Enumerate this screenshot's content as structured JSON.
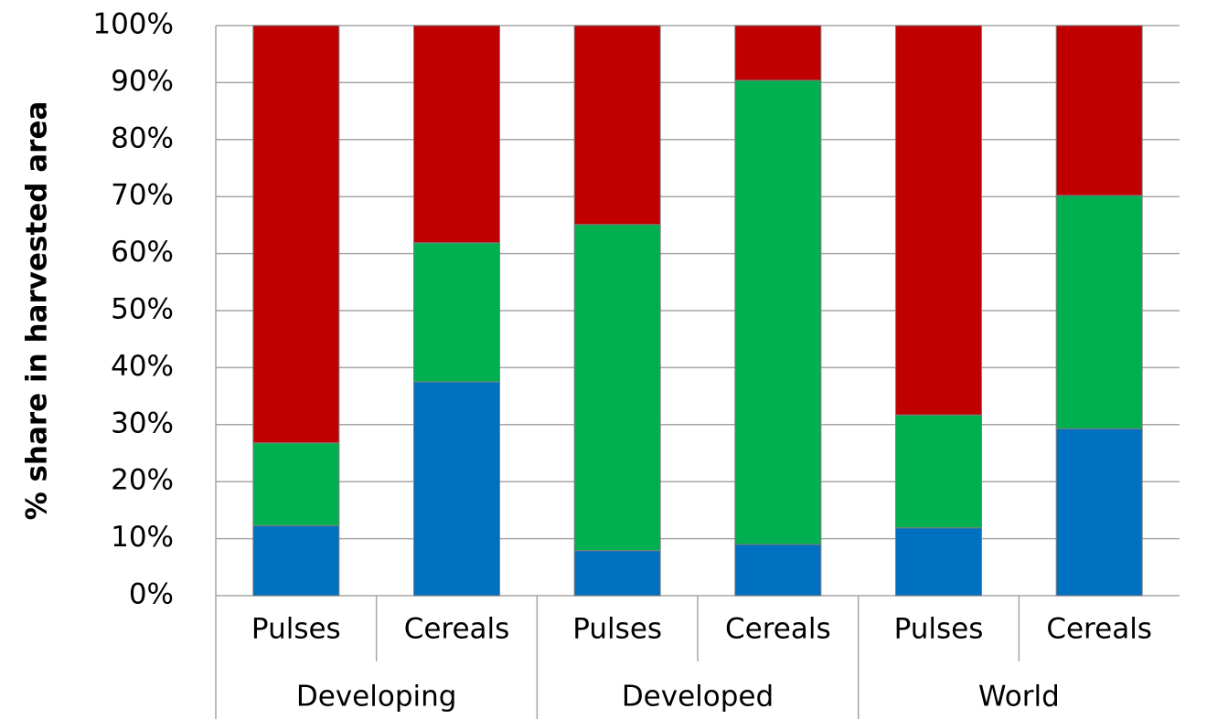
{
  "chart_data": {
    "type": "stacked_bar",
    "y_label": "% share in harvested area",
    "categories": [
      "Pulses",
      "Cereals",
      "Pulses",
      "Cereals",
      "Pulses",
      "Cereals"
    ],
    "groups": [
      "Developing",
      "Developed",
      "World"
    ],
    "series": [
      {
        "color": "#0070c0",
        "values": [
          12.3,
          37.5,
          7.9,
          9.0,
          11.9,
          29.3
        ]
      },
      {
        "color": "#00b050",
        "values": [
          14.5,
          24.4,
          57.2,
          81.4,
          19.8,
          40.9
        ]
      },
      {
        "color": "#c00000",
        "values": [
          73.2,
          38.1,
          34.9,
          9.6,
          68.3,
          29.8
        ]
      }
    ],
    "ylim": [
      0,
      100
    ],
    "yticks": [
      {
        "value": 0,
        "label": "0%"
      },
      {
        "value": 10,
        "label": "10%"
      },
      {
        "value": 20,
        "label": "20%"
      },
      {
        "value": 30,
        "label": "30%"
      },
      {
        "value": 40,
        "label": "40%"
      },
      {
        "value": 50,
        "label": "50%"
      },
      {
        "value": 60,
        "label": "60%"
      },
      {
        "value": 70,
        "label": "70%"
      },
      {
        "value": 80,
        "label": "80%"
      },
      {
        "value": 90,
        "label": "90%"
      },
      {
        "value": 100,
        "label": "100%"
      }
    ],
    "grid": true
  }
}
